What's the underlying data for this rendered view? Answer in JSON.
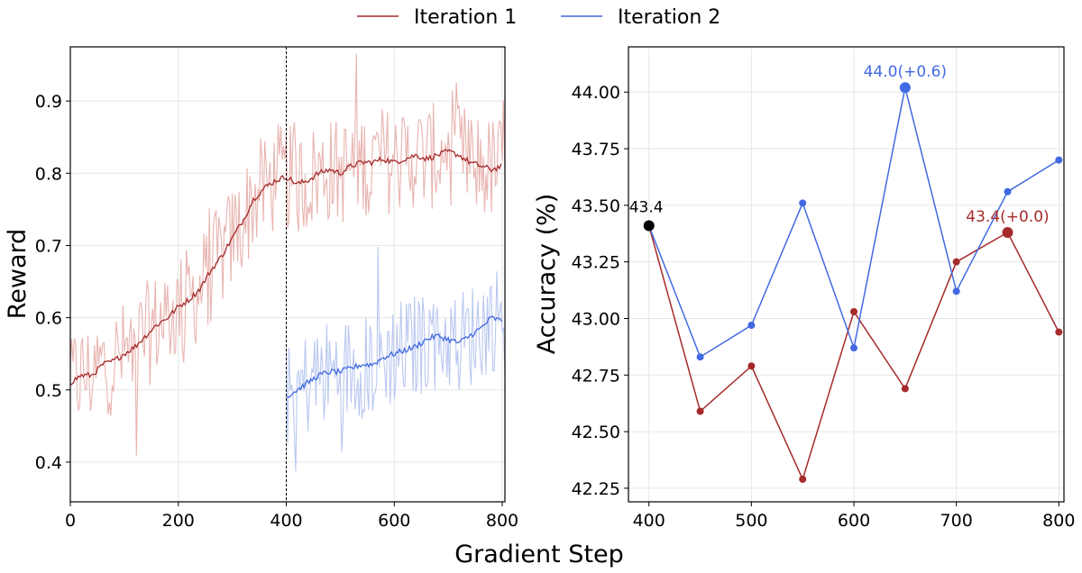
{
  "legend": [
    {
      "label": "Iteration 1",
      "color": "#a52a2a"
    },
    {
      "label": "Iteration 2",
      "color": "#4169e1"
    }
  ],
  "shared_xlabel": "Gradient Step",
  "chart_data": [
    {
      "type": "line",
      "ylabel": "Reward",
      "xlim": [
        0,
        805
      ],
      "ylim": [
        0.345,
        0.975
      ],
      "xticks": [
        0,
        200,
        400,
        600,
        800
      ],
      "yticks": [
        0.4,
        0.5,
        0.6,
        0.7,
        0.8,
        0.9
      ],
      "ytick_labels": [
        "0.4",
        "0.5",
        "0.6",
        "0.7",
        "0.8",
        "0.9"
      ],
      "grid": true,
      "vline_x": 400,
      "series": [
        {
          "name": "Iteration 1",
          "color": "#a52a2a",
          "raw_color": "#e8b4b0",
          "smoothed": [
            [
              0,
              0.51
            ],
            [
              20,
              0.52
            ],
            [
              40,
              0.52
            ],
            [
              60,
              0.535
            ],
            [
              80,
              0.54
            ],
            [
              100,
              0.55
            ],
            [
              120,
              0.56
            ],
            [
              140,
              0.575
            ],
            [
              160,
              0.59
            ],
            [
              180,
              0.6
            ],
            [
              200,
              0.615
            ],
            [
              220,
              0.625
            ],
            [
              240,
              0.64
            ],
            [
              260,
              0.665
            ],
            [
              280,
              0.685
            ],
            [
              300,
              0.71
            ],
            [
              320,
              0.735
            ],
            [
              340,
              0.765
            ],
            [
              360,
              0.78
            ],
            [
              380,
              0.79
            ],
            [
              400,
              0.795
            ],
            [
              420,
              0.785
            ],
            [
              440,
              0.79
            ],
            [
              460,
              0.8
            ],
            [
              480,
              0.805
            ],
            [
              500,
              0.8
            ],
            [
              520,
              0.81
            ],
            [
              540,
              0.815
            ],
            [
              560,
              0.815
            ],
            [
              580,
              0.82
            ],
            [
              600,
              0.815
            ],
            [
              620,
              0.82
            ],
            [
              640,
              0.825
            ],
            [
              660,
              0.82
            ],
            [
              680,
              0.825
            ],
            [
              700,
              0.83
            ],
            [
              720,
              0.825
            ],
            [
              740,
              0.815
            ],
            [
              760,
              0.81
            ],
            [
              780,
              0.805
            ],
            [
              800,
              0.81
            ]
          ],
          "raw_range": [
            0,
            805
          ]
        },
        {
          "name": "Iteration 2",
          "color": "#4169e1",
          "raw_color": "#b9c8f0",
          "smoothed": [
            [
              400,
              0.49
            ],
            [
              420,
              0.5
            ],
            [
              440,
              0.51
            ],
            [
              460,
              0.52
            ],
            [
              480,
              0.525
            ],
            [
              500,
              0.525
            ],
            [
              520,
              0.53
            ],
            [
              540,
              0.535
            ],
            [
              560,
              0.535
            ],
            [
              580,
              0.545
            ],
            [
              600,
              0.55
            ],
            [
              620,
              0.555
            ],
            [
              640,
              0.56
            ],
            [
              660,
              0.57
            ],
            [
              680,
              0.575
            ],
            [
              700,
              0.57
            ],
            [
              720,
              0.565
            ],
            [
              740,
              0.575
            ],
            [
              760,
              0.585
            ],
            [
              780,
              0.6
            ],
            [
              800,
              0.595
            ]
          ],
          "raw_range": [
            400,
            805
          ]
        }
      ]
    },
    {
      "type": "line",
      "ylabel": "Accuracy (%)",
      "xlim": [
        380,
        805
      ],
      "ylim": [
        42.19,
        44.2
      ],
      "xticks": [
        400,
        500,
        600,
        700,
        800
      ],
      "yticks": [
        42.25,
        42.5,
        42.75,
        43.0,
        43.25,
        43.5,
        43.75,
        44.0
      ],
      "ytick_labels": [
        "42.25",
        "42.50",
        "42.75",
        "43.00",
        "43.25",
        "43.50",
        "43.75",
        "44.00"
      ],
      "grid": true,
      "x": [
        400,
        450,
        500,
        550,
        600,
        650,
        700,
        750,
        800
      ],
      "series": [
        {
          "name": "Iteration 1",
          "color": "#a52a2a",
          "values": [
            43.41,
            42.59,
            42.79,
            42.29,
            43.03,
            42.69,
            43.25,
            43.38,
            42.94
          ],
          "highlight_index": 7
        },
        {
          "name": "Iteration 2",
          "color": "#4169e1",
          "values": [
            43.41,
            42.83,
            42.97,
            43.51,
            42.87,
            44.02,
            43.12,
            43.56,
            43.7
          ],
          "highlight_index": 5
        }
      ],
      "start_point": {
        "x": 400,
        "y": 43.41,
        "color": "#000000",
        "label": "43.4"
      },
      "annotations": [
        {
          "text": "44.0(+0.6)",
          "x": 650,
          "y": 44.02,
          "color": "#4169e1"
        },
        {
          "text": "43.4(+0.0)",
          "x": 750,
          "y": 43.38,
          "color": "#a52a2a"
        }
      ]
    }
  ]
}
